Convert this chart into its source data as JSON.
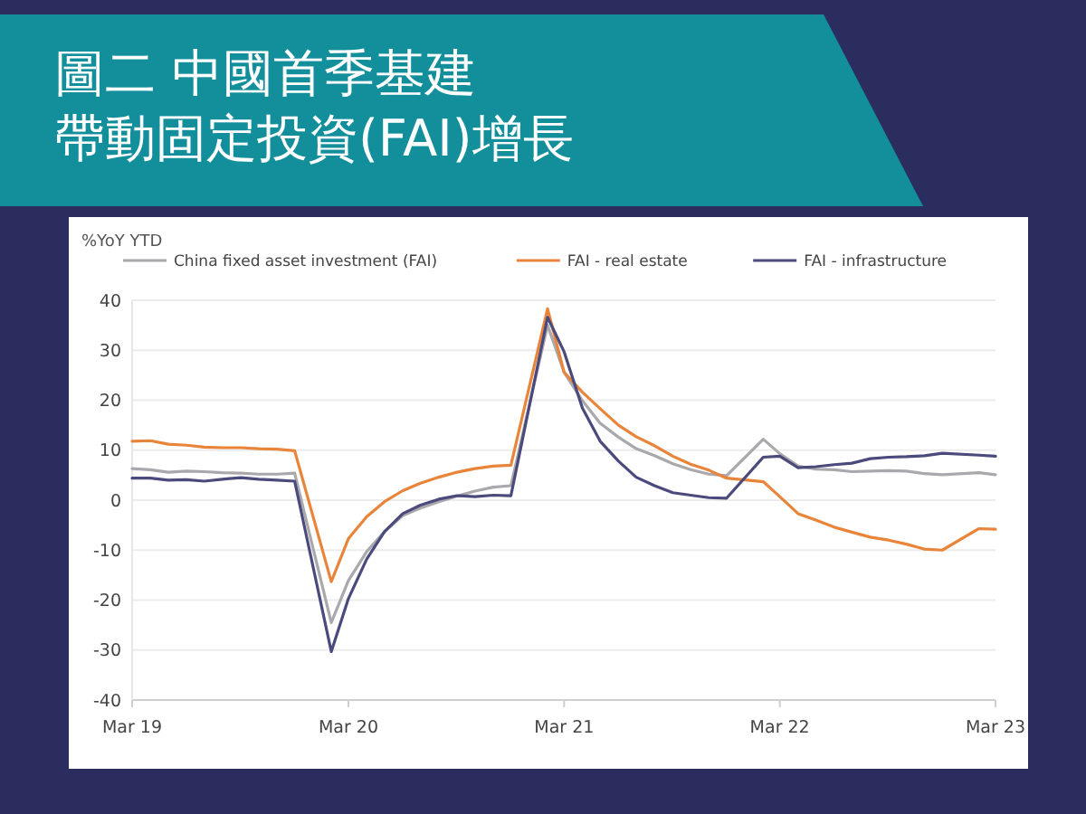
{
  "chart_data": {
    "type": "line",
    "title": "圖二 中國首季基建帶動固定投資(FAI)增長",
    "ylabel": "%YoY YTD",
    "x": [
      "2019-03",
      "2019-04",
      "2019-05",
      "2019-06",
      "2019-07",
      "2019-08",
      "2019-09",
      "2019-10",
      "2019-11",
      "2019-12",
      "2020-02",
      "2020-03",
      "2020-04",
      "2020-05",
      "2020-06",
      "2020-07",
      "2020-08",
      "2020-09",
      "2020-10",
      "2020-11",
      "2020-12",
      "2021-02",
      "2021-03",
      "2021-04",
      "2021-05",
      "2021-06",
      "2021-07",
      "2021-08",
      "2021-09",
      "2021-10",
      "2021-11",
      "2021-12",
      "2022-02",
      "2022-03",
      "2022-04",
      "2022-05",
      "2022-06",
      "2022-07",
      "2022-08",
      "2022-09",
      "2022-10",
      "2022-11",
      "2022-12",
      "2023-02",
      "2023-03"
    ],
    "series": [
      {
        "name": "China fixed asset investment (FAI)",
        "color": "#a9a9ad",
        "values": [
          6.3,
          6.1,
          5.6,
          5.8,
          5.7,
          5.5,
          5.4,
          5.2,
          5.2,
          5.4,
          -24.5,
          -16.1,
          -10.3,
          -6.3,
          -3.1,
          -1.6,
          -0.3,
          0.8,
          1.8,
          2.6,
          2.9,
          35.0,
          25.6,
          19.9,
          15.4,
          12.6,
          10.3,
          8.9,
          7.3,
          6.1,
          5.2,
          4.9,
          12.2,
          9.3,
          6.8,
          6.2,
          6.1,
          5.7,
          5.8,
          5.9,
          5.8,
          5.3,
          5.1,
          5.5,
          5.1
        ]
      },
      {
        "name": "FAI - real estate",
        "color": "#e8853a",
        "values": [
          11.8,
          11.9,
          11.2,
          11.0,
          10.6,
          10.5,
          10.5,
          10.3,
          10.2,
          9.9,
          -16.3,
          -7.7,
          -3.3,
          -0.3,
          1.9,
          3.4,
          4.6,
          5.6,
          6.3,
          6.8,
          7.0,
          38.3,
          25.6,
          21.6,
          18.3,
          15.0,
          12.7,
          10.9,
          8.8,
          7.2,
          6.0,
          4.4,
          3.7,
          0.7,
          -2.7,
          -4.0,
          -5.4,
          -6.4,
          -7.4,
          -8.0,
          -8.8,
          -9.8,
          -10.0,
          -5.7,
          -5.8
        ]
      },
      {
        "name": "FAI - infrastructure",
        "color": "#4b4a7c",
        "values": [
          4.4,
          4.4,
          4.0,
          4.1,
          3.8,
          4.2,
          4.5,
          4.2,
          4.0,
          3.8,
          -30.3,
          -19.7,
          -11.8,
          -6.3,
          -2.7,
          -1.0,
          0.2,
          0.9,
          0.7,
          1.0,
          0.9,
          36.6,
          29.7,
          18.4,
          11.8,
          7.8,
          4.6,
          2.9,
          1.5,
          1.0,
          0.5,
          0.4,
          8.6,
          8.8,
          6.5,
          6.7,
          7.1,
          7.4,
          8.3,
          8.6,
          8.7,
          8.9,
          9.4,
          9.0,
          8.8
        ]
      }
    ],
    "xlim": [
      "2019-03",
      "2023-03"
    ],
    "xticks": [
      {
        "value": "2019-03",
        "label": "Mar 19"
      },
      {
        "value": "2020-03",
        "label": "Mar 20"
      },
      {
        "value": "2021-03",
        "label": "Mar 21"
      },
      {
        "value": "2022-03",
        "label": "Mar 22"
      },
      {
        "value": "2023-03",
        "label": "Mar 23"
      }
    ],
    "ylim": [
      -40,
      40
    ],
    "yticks": [
      -40,
      -30,
      -20,
      -10,
      0,
      10,
      20,
      30,
      40
    ],
    "grid": "y",
    "legend": "top",
    "marker": "none",
    "line_style": "solid"
  }
}
